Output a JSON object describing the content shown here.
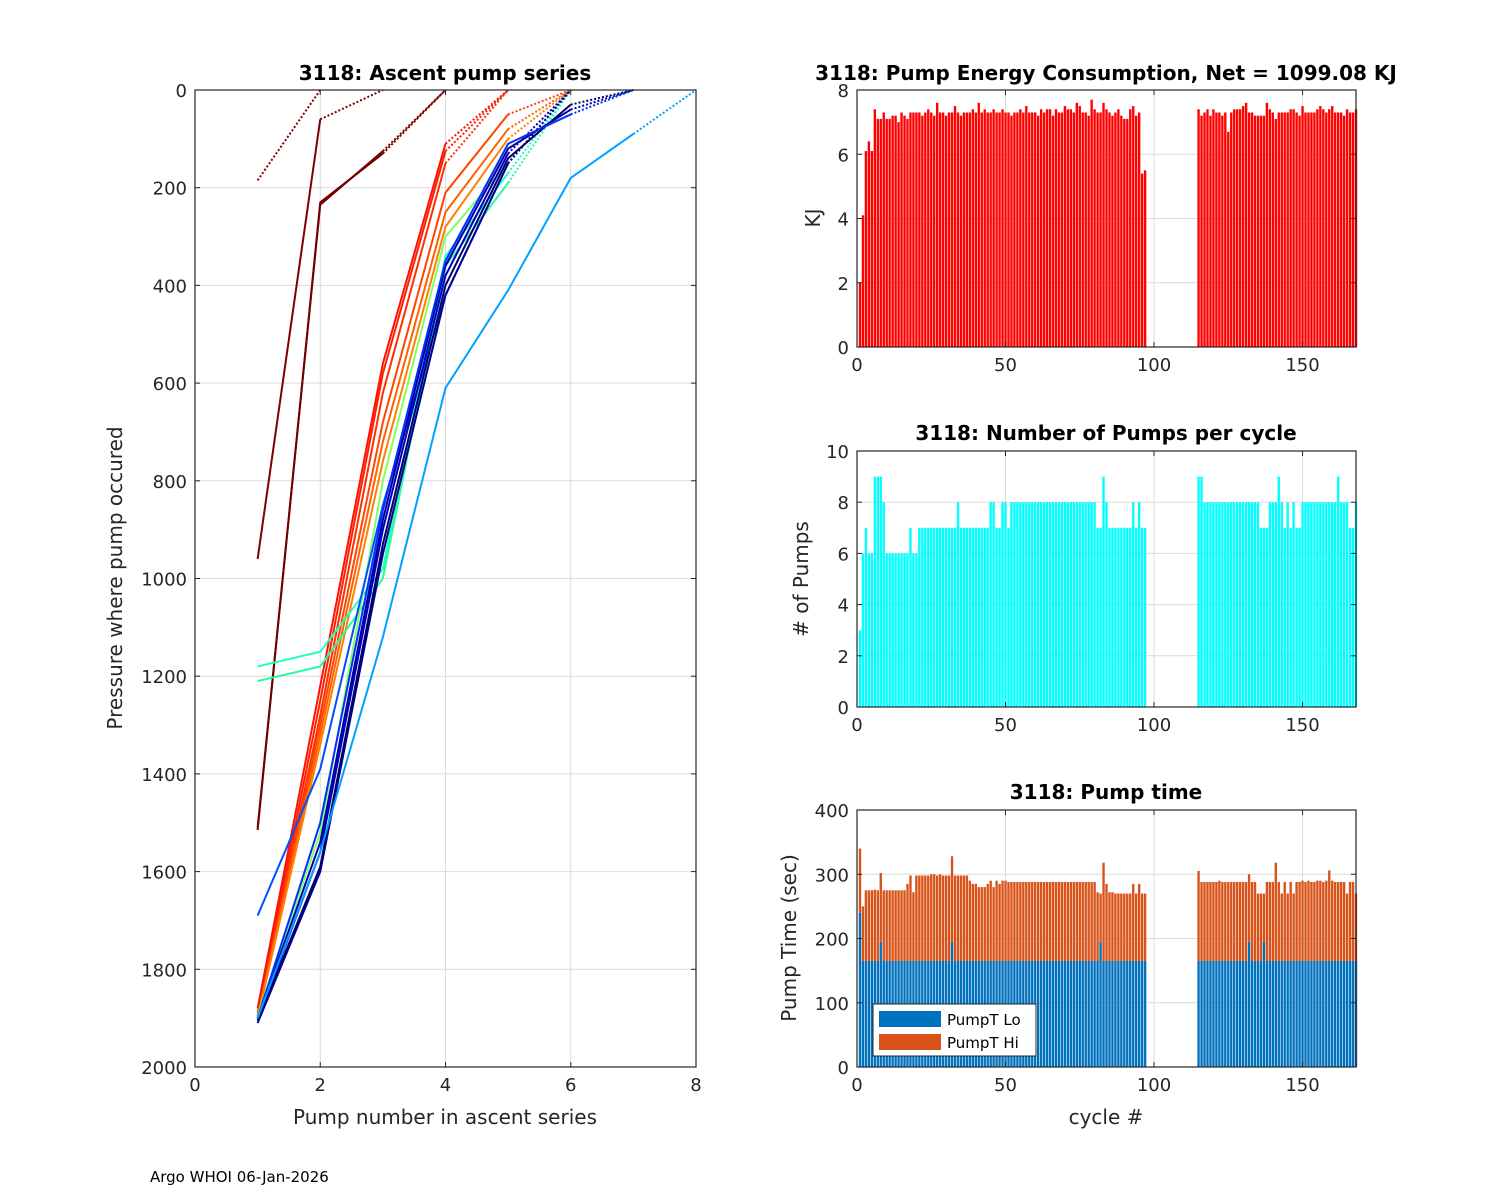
{
  "footer": "Argo WHOI 06-Jan-2026",
  "chart_data": [
    {
      "id": "ascent",
      "type": "line",
      "title": "3118: Ascent pump series",
      "xlabel": "Pump number in ascent series",
      "ylabel": "Pressure where pump occured",
      "xlim": [
        0,
        8
      ],
      "ylim": [
        2000,
        0
      ],
      "y_reversed": true,
      "xticks": [
        0,
        2,
        4,
        6,
        8
      ],
      "yticks": [
        0,
        200,
        400,
        600,
        800,
        1000,
        1200,
        1400,
        1600,
        1800,
        2000
      ],
      "grid": true,
      "colormap": "jet (colored by cycle; dotted segment to surface)",
      "series_samples": [
        {
          "color": "#7f0000",
          "x": [
            1,
            2
          ],
          "y": [
            185,
            0
          ],
          "dotted": true
        },
        {
          "color": "#7f0000",
          "x": [
            1,
            2,
            3
          ],
          "y": [
            960,
            60,
            0
          ]
        },
        {
          "color": "#7f0000",
          "x": [
            1,
            2,
            3,
            4
          ],
          "y": [
            1510,
            235,
            125,
            0
          ]
        },
        {
          "color": "#700000",
          "x": [
            1,
            2,
            3,
            4
          ],
          "y": [
            1515,
            230,
            130,
            0
          ]
        },
        {
          "color": "#ff2000",
          "x": [
            1,
            2,
            3,
            4,
            5
          ],
          "y": [
            1890,
            1250,
            580,
            125,
            0
          ]
        },
        {
          "color": "#ff3000",
          "x": [
            1,
            2,
            3,
            4,
            5
          ],
          "y": [
            1895,
            1280,
            620,
            150,
            0
          ]
        },
        {
          "color": "#ff1000",
          "x": [
            1,
            2,
            3,
            4,
            5
          ],
          "y": [
            1880,
            1220,
            560,
            110,
            0
          ]
        },
        {
          "color": "#ff4500",
          "x": [
            1,
            2,
            3,
            4,
            5,
            6
          ],
          "y": [
            1895,
            1300,
            680,
            210,
            50,
            0
          ]
        },
        {
          "color": "#ff6000",
          "x": [
            1,
            2,
            3,
            4,
            5,
            6
          ],
          "y": [
            1900,
            1320,
            720,
            250,
            80,
            0
          ]
        },
        {
          "color": "#ff8000",
          "x": [
            1,
            2,
            3,
            4,
            5,
            6
          ],
          "y": [
            1900,
            1340,
            760,
            280,
            100,
            0
          ]
        },
        {
          "color": "#20ffc0",
          "x": [
            1,
            2,
            3,
            4,
            5,
            6
          ],
          "y": [
            1180,
            1150,
            980,
            340,
            170,
            0
          ]
        },
        {
          "color": "#20ffa0",
          "x": [
            1,
            2,
            3,
            4,
            5,
            6
          ],
          "y": [
            1210,
            1180,
            1000,
            360,
            190,
            0
          ]
        },
        {
          "color": "#80ff60",
          "x": [
            1,
            2,
            3,
            4,
            5,
            6
          ],
          "y": [
            1895,
            1520,
            800,
            300,
            150,
            0
          ]
        },
        {
          "color": "#0050ff",
          "x": [
            1,
            2,
            3,
            4,
            5,
            6
          ],
          "y": [
            1690,
            1390,
            850,
            420,
            150,
            0
          ]
        },
        {
          "color": "#0000c0",
          "x": [
            1,
            2,
            3,
            4,
            5,
            6
          ],
          "y": [
            1905,
            1560,
            900,
            380,
            130,
            0
          ]
        },
        {
          "color": "#000090",
          "x": [
            1,
            2,
            3,
            4,
            5,
            6
          ],
          "y": [
            1910,
            1600,
            950,
            420,
            150,
            0
          ]
        },
        {
          "color": "#000070",
          "x": [
            1,
            2,
            3,
            4,
            5,
            6,
            7
          ],
          "y": [
            1905,
            1590,
            930,
            400,
            140,
            30,
            0
          ]
        },
        {
          "color": "#0000a0",
          "x": [
            1,
            2,
            3,
            4,
            5,
            6,
            7
          ],
          "y": [
            1900,
            1540,
            880,
            360,
            120,
            40,
            0
          ]
        },
        {
          "color": "#0030ff",
          "x": [
            1,
            2,
            3,
            4,
            5,
            6,
            7
          ],
          "y": [
            1900,
            1500,
            860,
            350,
            110,
            50,
            0
          ]
        },
        {
          "color": "#00a0ff",
          "x": [
            1,
            2,
            3,
            4,
            5,
            6,
            7,
            8
          ],
          "y": [
            1900,
            1560,
            1120,
            610,
            410,
            180,
            90,
            0
          ]
        }
      ]
    },
    {
      "id": "energy",
      "type": "bar",
      "title": "3118: Pump Energy Consumption,  Net = 1099.08 KJ",
      "xlabel": "",
      "ylabel": "KJ",
      "xlim": [
        0,
        168
      ],
      "ylim": [
        0,
        8
      ],
      "xticks": [
        0,
        50,
        100,
        150
      ],
      "yticks": [
        0,
        2,
        4,
        6,
        8
      ],
      "grid": true,
      "color": "#ff0000",
      "segments": [
        {
          "start_cycle": 1,
          "values": [
            2.0,
            4.1,
            6.1,
            6.4,
            6.1,
            7.4,
            7.1,
            7.1,
            7.3,
            7.1,
            7.1,
            7.2,
            7.2,
            7.0,
            7.3,
            7.2,
            7.1,
            7.3,
            7.3,
            7.3,
            7.3,
            7.2,
            7.3,
            7.4,
            7.3,
            7.2,
            7.6,
            7.3,
            7.3,
            7.2,
            7.3,
            7.3,
            7.5,
            7.3,
            7.2,
            7.3,
            7.3,
            7.3,
            7.4,
            7.3,
            7.6,
            7.3,
            7.4,
            7.3,
            7.3,
            7.4,
            7.3,
            7.3,
            7.4,
            7.3,
            7.3,
            7.2,
            7.3,
            7.3,
            7.4,
            7.3,
            7.5,
            7.3,
            7.3,
            7.3,
            7.2,
            7.4,
            7.3,
            7.4,
            7.4,
            7.2,
            7.4,
            7.3,
            7.3,
            7.5,
            7.4,
            7.4,
            7.3,
            7.6,
            7.5,
            7.3,
            7.3,
            7.2,
            7.7,
            7.4,
            7.3,
            7.3,
            7.6,
            7.4,
            7.3,
            7.2,
            7.3,
            7.4,
            7.2,
            7.1,
            7.1,
            7.4,
            7.5,
            7.2,
            7.3,
            5.4,
            5.5
          ]
        },
        {
          "start_cycle": 115,
          "values": [
            7.4,
            7.2,
            7.3,
            7.4,
            7.2,
            7.4,
            7.3,
            7.3,
            7.2,
            7.3,
            6.7,
            7.3,
            7.4,
            7.4,
            7.4,
            7.5,
            7.6,
            7.3,
            7.3,
            7.2,
            7.2,
            7.2,
            7.2,
            7.6,
            7.4,
            7.3,
            7.1,
            7.3,
            7.3,
            7.3,
            7.3,
            7.4,
            7.4,
            7.3,
            7.2,
            7.5,
            7.3,
            7.3,
            7.3,
            7.3,
            7.4,
            7.5,
            7.4,
            7.3,
            7.4,
            7.5,
            7.3,
            7.3,
            7.3,
            7.2,
            7.4,
            7.3,
            7.3,
            7.4
          ]
        }
      ]
    },
    {
      "id": "pumps",
      "type": "bar",
      "title": "3118: Number of Pumps per cycle",
      "xlabel": "",
      "ylabel": "# of Pumps",
      "xlim": [
        0,
        168
      ],
      "ylim": [
        0,
        10
      ],
      "xticks": [
        0,
        50,
        100,
        150
      ],
      "yticks": [
        0,
        2,
        4,
        6,
        8,
        10
      ],
      "grid": true,
      "color": "#00ffff",
      "segments": [
        {
          "start_cycle": 1,
          "values": [
            3,
            6,
            7,
            6,
            6,
            9,
            9,
            9,
            8,
            6,
            6,
            6,
            6,
            6,
            6,
            6,
            6,
            7,
            6,
            6,
            7,
            7,
            7,
            7,
            7,
            7,
            7,
            7,
            7,
            7,
            7,
            7,
            7,
            8,
            7,
            7,
            7,
            7,
            7,
            7,
            7,
            7,
            7,
            7,
            8,
            8,
            7,
            7,
            8,
            8,
            7,
            8,
            8,
            8,
            8,
            8,
            8,
            8,
            8,
            8,
            8,
            8,
            8,
            8,
            8,
            8,
            8,
            8,
            8,
            8,
            8,
            8,
            8,
            8,
            8,
            8,
            8,
            8,
            8,
            8,
            7,
            7,
            9,
            8,
            7,
            7,
            7,
            7,
            7,
            7,
            7,
            7,
            8,
            7,
            8,
            7,
            7
          ]
        },
        {
          "start_cycle": 115,
          "values": [
            9,
            9,
            8,
            8,
            8,
            8,
            8,
            8,
            8,
            8,
            8,
            8,
            8,
            8,
            8,
            8,
            8,
            8,
            8,
            8,
            8,
            7,
            7,
            7,
            8,
            8,
            8,
            9,
            8,
            7,
            8,
            7,
            8,
            7,
            7,
            8,
            8,
            8,
            8,
            8,
            8,
            8,
            8,
            8,
            8,
            8,
            8,
            9,
            8,
            8,
            8,
            7,
            7,
            8
          ]
        }
      ]
    },
    {
      "id": "pumptime",
      "type": "bar",
      "stacked": true,
      "title": "3118: Pump time",
      "xlabel": "cycle #",
      "ylabel": "Pump Time (sec)",
      "xlim": [
        0,
        168
      ],
      "ylim": [
        0,
        400
      ],
      "xticks": [
        0,
        50,
        100,
        150
      ],
      "yticks": [
        0,
        100,
        200,
        300,
        400
      ],
      "grid": true,
      "legend": {
        "position": "bottom-left",
        "entries": [
          {
            "label": "PumpT Lo",
            "color": "#0072bd"
          },
          {
            "label": "PumpT Hi",
            "color": "#d95319"
          }
        ]
      },
      "segments": [
        {
          "start_cycle": 1,
          "lo": [
            240,
            165,
            165,
            165,
            165,
            165,
            165,
            195,
            165,
            165,
            165,
            165,
            165,
            165,
            165,
            165,
            165,
            165,
            165,
            165,
            165,
            165,
            165,
            165,
            165,
            165,
            165,
            165,
            165,
            165,
            165,
            195,
            165,
            165,
            165,
            165,
            165,
            165,
            165,
            165,
            165,
            165,
            165,
            165,
            165,
            165,
            165,
            165,
            165,
            165,
            165,
            165,
            165,
            165,
            165,
            165,
            165,
            165,
            165,
            165,
            165,
            165,
            165,
            165,
            165,
            165,
            165,
            165,
            165,
            165,
            165,
            165,
            165,
            165,
            165,
            165,
            165,
            165,
            165,
            165,
            165,
            195,
            165,
            165,
            165,
            165,
            165,
            165,
            165,
            165,
            165,
            165,
            165,
            165,
            165,
            165,
            165
          ],
          "total": [
            340,
            250,
            275,
            275,
            275,
            276,
            275,
            302,
            275,
            275,
            275,
            275,
            275,
            275,
            275,
            275,
            285,
            298,
            272,
            298,
            298,
            298,
            298,
            298,
            300,
            300,
            298,
            300,
            298,
            298,
            298,
            328,
            298,
            298,
            298,
            298,
            298,
            290,
            285,
            285,
            280,
            280,
            280,
            285,
            290,
            280,
            290,
            285,
            290,
            290,
            288,
            288,
            288,
            288,
            288,
            288,
            288,
            288,
            288,
            288,
            288,
            288,
            288,
            288,
            288,
            288,
            288,
            288,
            288,
            288,
            288,
            288,
            288,
            288,
            288,
            288,
            288,
            288,
            288,
            288,
            272,
            270,
            318,
            285,
            272,
            272,
            270,
            270,
            270,
            270,
            270,
            270,
            285,
            270,
            285,
            270,
            270
          ]
        },
        {
          "start_cycle": 115,
          "lo": [
            165,
            165,
            165,
            165,
            165,
            165,
            165,
            165,
            165,
            165,
            165,
            165,
            165,
            165,
            165,
            165,
            165,
            195,
            165,
            165,
            165,
            165,
            195,
            165,
            165,
            165,
            165,
            165,
            165,
            165,
            165,
            165,
            165,
            165,
            165,
            165,
            165,
            165,
            165,
            165,
            165,
            165,
            165,
            165,
            165,
            165,
            165,
            165,
            165,
            165,
            165,
            165,
            165,
            165
          ],
          "total": [
            305,
            288,
            288,
            288,
            288,
            288,
            288,
            290,
            288,
            288,
            288,
            288,
            288,
            288,
            288,
            288,
            288,
            300,
            288,
            288,
            270,
            270,
            270,
            288,
            288,
            288,
            318,
            288,
            270,
            288,
            270,
            288,
            270,
            288,
            288,
            290,
            288,
            290,
            288,
            288,
            290,
            290,
            288,
            290,
            306,
            290,
            288,
            288,
            288,
            288,
            270,
            288,
            288,
            270
          ]
        }
      ]
    }
  ]
}
